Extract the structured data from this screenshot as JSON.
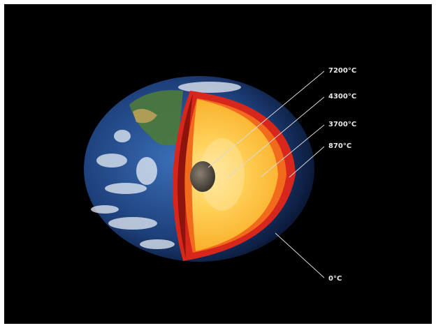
{
  "labels": [
    "7200°C",
    "4300°C",
    "3700°C",
    "870°C",
    "0°C"
  ]
}
